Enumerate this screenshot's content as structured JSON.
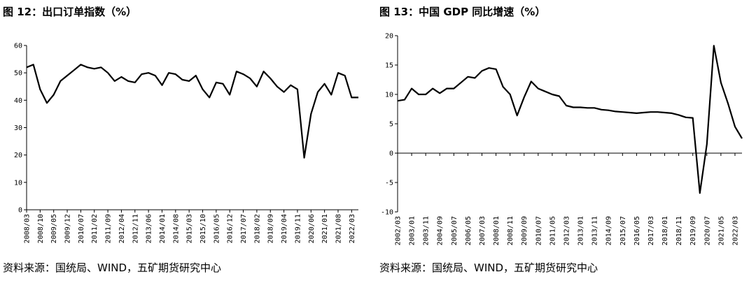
{
  "chart_data": [
    {
      "type": "line",
      "title": "图 12：出口订单指数（%）",
      "source": "资料来源：国统局、WIND，五矿期货研究中心",
      "color": "#000000",
      "categories": [
        "2008/03",
        null,
        "2008/10",
        null,
        "2009/05",
        null,
        "2009/12",
        null,
        "2010/07",
        null,
        "2011/02",
        null,
        "2011/09",
        null,
        "2012/04",
        null,
        "2012/11",
        null,
        "2013/06",
        null,
        "2014/01",
        null,
        "2014/08",
        null,
        "2015/03",
        null,
        "2015/10",
        null,
        "2016/05",
        null,
        "2016/12",
        null,
        "2017/07",
        null,
        "2018/02",
        null,
        "2018/09",
        null,
        "2019/04",
        null,
        "2019/11",
        null,
        "2020/06",
        null,
        "2021/01",
        null,
        "2021/08",
        null,
        "2022/03",
        null
      ],
      "values": [
        52,
        53,
        44,
        39,
        42,
        47,
        49,
        51,
        53,
        52,
        51.5,
        52,
        50,
        47,
        48.5,
        47,
        46.5,
        49.5,
        50,
        49,
        45.5,
        50,
        49.5,
        47.5,
        47,
        49,
        44,
        41,
        46.5,
        46,
        42,
        50.5,
        49.5,
        48,
        45,
        50.5,
        48,
        45,
        43,
        45.5,
        44,
        19,
        35,
        43,
        46,
        42,
        50,
        49,
        41,
        41
      ],
      "ylim": [
        0,
        60
      ],
      "yticks": [
        0,
        10,
        20,
        30,
        40,
        50,
        60
      ]
    },
    {
      "type": "line",
      "title": "图 13：中国 GDP 同比增速（%）",
      "source": "资料来源：国统局、WIND，五矿期货研究中心",
      "color": "#000000",
      "categories": [
        "2002/03",
        null,
        "2003/01",
        null,
        "2003/11",
        null,
        "2004/09",
        null,
        "2005/07",
        null,
        "2006/05",
        null,
        "2007/03",
        null,
        "2008/01",
        null,
        "2008/11",
        null,
        "2009/09",
        null,
        "2010/07",
        null,
        "2011/05",
        null,
        "2012/03",
        null,
        "2013/01",
        null,
        "2013/11",
        null,
        "2014/09",
        null,
        "2015/07",
        null,
        "2016/05",
        null,
        "2017/03",
        null,
        "2018/01",
        null,
        "2018/11",
        null,
        "2019/09",
        null,
        "2020/07",
        null,
        "2021/05",
        null,
        "2022/03",
        null
      ],
      "values": [
        8.9,
        9.1,
        11,
        10,
        10,
        11,
        10.2,
        11,
        11,
        12,
        13,
        12.8,
        14,
        14.5,
        14.3,
        11.3,
        10,
        6.4,
        9.5,
        12.2,
        11,
        10.5,
        10,
        9.7,
        8.1,
        7.8,
        7.8,
        7.7,
        7.7,
        7.4,
        7.3,
        7.1,
        7,
        6.9,
        6.8,
        6.9,
        7,
        7,
        6.9,
        6.8,
        6.5,
        6.1,
        6,
        -6.8,
        1.5,
        18.3,
        12,
        8.5,
        4.5,
        2.5
      ],
      "ylim": [
        -10,
        20
      ],
      "yticks": [
        -10,
        -5,
        0,
        5,
        10,
        15,
        20
      ]
    }
  ]
}
